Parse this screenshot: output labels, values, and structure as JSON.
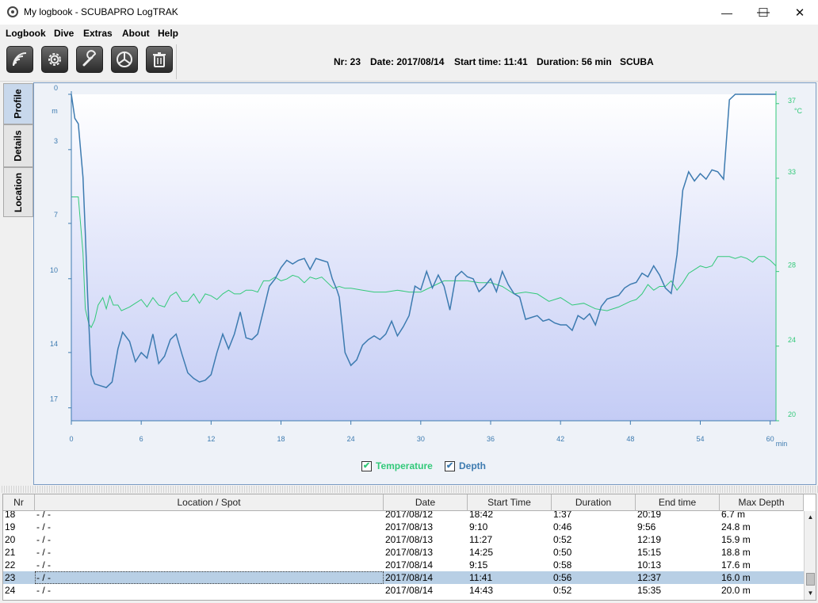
{
  "window": {
    "title": "My logbook - SCUBAPRO LogTRAK",
    "minimize_label": "—",
    "maximize_label": "☐",
    "close_label": "✕"
  },
  "menu": [
    "Logbook",
    "Dive",
    "Extras",
    "About",
    "Help"
  ],
  "toolbar": {
    "buttons": [
      "download-icon",
      "settings-gear-icon",
      "wrench-icon",
      "pie-chart-icon",
      "trash-icon"
    ],
    "dive_info": {
      "nr": "Nr: 23",
      "date": "Date: 2017/08/14",
      "start_time": "Start time: 11:41",
      "duration": "Duration: 56 min",
      "type": "SCUBA"
    }
  },
  "side_tabs": [
    {
      "label": "Profile",
      "active": true
    },
    {
      "label": "Details",
      "active": false
    },
    {
      "label": "Location",
      "active": false
    }
  ],
  "chart_data": {
    "type": "line",
    "x_unit": "min",
    "x_ticks": [
      0,
      6,
      12,
      18,
      24,
      30,
      36,
      42,
      48,
      54,
      60
    ],
    "xlim": [
      0,
      60.5
    ],
    "left_axis": {
      "unit": "m",
      "ticks": [
        0,
        3,
        7,
        10,
        14,
        17
      ],
      "range": [
        0,
        17.7
      ],
      "inverted": true
    },
    "right_axis": {
      "unit": "°C",
      "ticks": [
        20,
        24,
        28,
        33,
        37
      ],
      "range": [
        20,
        37.5
      ]
    },
    "colors": {
      "depth": "#3d7bb0",
      "temperature": "#33c97a",
      "grad_top": "#ffffff",
      "grad_bottom": "#c4ccf5"
    },
    "series": [
      {
        "name": "Depth",
        "x": [
          0,
          0.3,
          0.6,
          1.0,
          1.2,
          1.4,
          1.7,
          2.0,
          2.5,
          3.0,
          3.5,
          4.0,
          4.4,
          5.0,
          5.5,
          6.0,
          6.5,
          7.0,
          7.5,
          8.0,
          8.5,
          9.0,
          9.5,
          10.0,
          10.5,
          11.0,
          11.5,
          12.0,
          12.5,
          13.0,
          13.5,
          14.0,
          14.5,
          15.0,
          15.5,
          16.0,
          16.5,
          17.0,
          17.5,
          18.0,
          18.5,
          19.0,
          19.5,
          20.0,
          20.5,
          21.0,
          21.5,
          22.0,
          22.4,
          22.8,
          23.0,
          23.5,
          24.0,
          24.5,
          25.0,
          25.5,
          26.0,
          26.5,
          27.0,
          27.5,
          28.0,
          28.5,
          29.0,
          29.5,
          30.0,
          30.5,
          31.0,
          31.5,
          32.0,
          32.5,
          33.0,
          33.5,
          34.0,
          34.5,
          35.0,
          35.5,
          36.0,
          36.5,
          37.0,
          37.5,
          38.0,
          38.5,
          39.0,
          39.5,
          40.0,
          40.5,
          41.0,
          41.5,
          42.0,
          42.5,
          43.0,
          43.5,
          44.0,
          44.5,
          45.0,
          45.5,
          46.0,
          46.5,
          47.0,
          47.5,
          48.0,
          48.5,
          49.0,
          49.5,
          50.0,
          50.5,
          51.0,
          51.5,
          52.0,
          52.5,
          53.0,
          53.5,
          54.0,
          54.5,
          55.0,
          55.5,
          56.0,
          56.5,
          57.0,
          57.5,
          58.0,
          58.5,
          59.0,
          59.5,
          60.0,
          60.5
        ],
        "y": [
          0.0,
          1.3,
          1.6,
          4.5,
          7.5,
          11.0,
          15.2,
          15.7,
          15.8,
          15.9,
          15.6,
          13.8,
          12.9,
          13.4,
          14.5,
          14.0,
          14.3,
          13.0,
          14.6,
          14.2,
          13.3,
          13.0,
          14.1,
          15.1,
          15.4,
          15.6,
          15.5,
          15.2,
          14.0,
          13.0,
          13.8,
          13.0,
          11.8,
          13.2,
          13.3,
          13.0,
          11.7,
          10.4,
          10.0,
          9.4,
          9.0,
          9.2,
          9.0,
          8.9,
          9.5,
          8.9,
          9.0,
          9.1,
          10.0,
          10.6,
          11.0,
          14.0,
          14.7,
          14.4,
          13.6,
          13.3,
          13.1,
          13.3,
          13.0,
          12.3,
          13.1,
          12.6,
          12.0,
          10.4,
          10.6,
          9.6,
          10.5,
          9.8,
          10.4,
          11.7,
          9.9,
          9.6,
          9.9,
          10.0,
          10.7,
          10.4,
          10.0,
          10.7,
          9.6,
          10.3,
          10.8,
          11.0,
          12.2,
          12.1,
          12.0,
          12.3,
          12.2,
          12.4,
          12.5,
          12.5,
          12.8,
          12.0,
          12.2,
          11.9,
          12.5,
          11.5,
          11.1,
          11.0,
          10.9,
          10.5,
          10.3,
          10.2,
          9.7,
          9.9,
          9.3,
          9.8,
          10.5,
          10.8,
          8.7,
          5.2,
          4.2,
          4.7,
          4.3,
          4.6,
          4.1,
          4.2,
          4.6,
          0.3,
          0.0,
          0.0,
          0.0,
          0.0,
          0.0,
          0.0,
          0.0,
          0.0
        ]
      },
      {
        "name": "Temperature",
        "x": [
          0,
          0.6,
          1.0,
          1.2,
          1.5,
          1.7,
          2.0,
          2.3,
          2.7,
          3.0,
          3.3,
          3.6,
          4.0,
          4.3,
          5.0,
          5.5,
          6.0,
          6.5,
          7.0,
          7.5,
          8.0,
          8.5,
          9.0,
          9.5,
          10.0,
          10.5,
          11.0,
          11.5,
          12.0,
          12.5,
          13.0,
          13.5,
          14.0,
          14.5,
          15.0,
          15.5,
          16.0,
          16.5,
          17.0,
          17.5,
          18.0,
          18.5,
          19.0,
          19.5,
          20.0,
          20.5,
          21.0,
          21.5,
          22.0,
          22.5,
          23.0,
          23.5,
          24.0,
          25.0,
          26.0,
          27.0,
          28.0,
          29.0,
          30.0,
          31.0,
          32.0,
          33.0,
          34.0,
          35.0,
          36.0,
          37.0,
          38.0,
          39.0,
          40.0,
          41.0,
          42.0,
          43.0,
          44.0,
          45.0,
          46.0,
          47.0,
          48.0,
          48.5,
          49.0,
          49.5,
          50.0,
          50.5,
          51.0,
          51.5,
          52.0,
          52.5,
          53.0,
          53.5,
          54.0,
          54.5,
          55.0,
          55.5,
          56.0,
          56.5,
          57.0,
          57.5,
          58.0,
          58.5,
          59.0,
          59.5,
          60.0,
          60.5
        ],
        "y": [
          32.0,
          32.0,
          29.0,
          26.0,
          25.2,
          25.0,
          25.4,
          26.2,
          26.6,
          26.0,
          26.7,
          26.2,
          26.2,
          25.9,
          26.1,
          26.3,
          26.5,
          26.1,
          26.6,
          26.2,
          26.1,
          26.7,
          26.9,
          26.4,
          26.4,
          26.8,
          26.3,
          26.8,
          26.7,
          26.5,
          26.8,
          27.0,
          26.8,
          26.8,
          27.0,
          27.0,
          26.9,
          27.5,
          27.5,
          27.7,
          27.5,
          27.6,
          27.8,
          27.7,
          27.4,
          27.7,
          27.6,
          27.7,
          27.4,
          27.1,
          27.2,
          27.1,
          27.1,
          27.0,
          26.9,
          26.9,
          27.0,
          26.9,
          26.9,
          27.2,
          27.5,
          27.5,
          27.5,
          27.4,
          27.4,
          27.2,
          26.8,
          26.9,
          26.8,
          26.4,
          26.6,
          26.2,
          26.3,
          26.0,
          25.9,
          26.1,
          26.4,
          26.5,
          26.8,
          27.3,
          27.0,
          27.2,
          27.2,
          27.5,
          27.0,
          27.4,
          27.9,
          28.1,
          28.3,
          28.2,
          28.3,
          28.8,
          28.8,
          28.8,
          28.7,
          28.8,
          28.7,
          28.5,
          28.8,
          28.8,
          28.6,
          28.3
        ]
      }
    ]
  },
  "legend": {
    "temperature_label": "Temperature",
    "depth_label": "Depth",
    "temperature_checked": true,
    "depth_checked": true,
    "check_mark": "✔"
  },
  "table": {
    "columns": [
      "Nr",
      "Location / Spot",
      "Date",
      "Start Time",
      "Duration",
      "End time",
      "Max Depth"
    ],
    "rows": [
      {
        "nr": "18",
        "location": "- / -",
        "date": "2017/08/12",
        "start": "18:42",
        "duration": "1:37",
        "end": "20:19",
        "max_depth": "6.7 m",
        "selected": false
      },
      {
        "nr": "19",
        "location": "- / -",
        "date": "2017/08/13",
        "start": "9:10",
        "duration": "0:46",
        "end": "9:56",
        "max_depth": "24.8 m",
        "selected": false
      },
      {
        "nr": "20",
        "location": "- / -",
        "date": "2017/08/13",
        "start": "11:27",
        "duration": "0:52",
        "end": "12:19",
        "max_depth": "15.9 m",
        "selected": false
      },
      {
        "nr": "21",
        "location": "- / -",
        "date": "2017/08/13",
        "start": "14:25",
        "duration": "0:50",
        "end": "15:15",
        "max_depth": "18.8 m",
        "selected": false
      },
      {
        "nr": "22",
        "location": "- / -",
        "date": "2017/08/14",
        "start": "9:15",
        "duration": "0:58",
        "end": "10:13",
        "max_depth": "17.6 m",
        "selected": false
      },
      {
        "nr": "23",
        "location": "- / -",
        "date": "2017/08/14",
        "start": "11:41",
        "duration": "0:56",
        "end": "12:37",
        "max_depth": "16.0 m",
        "selected": true
      },
      {
        "nr": "24",
        "location": "- / -",
        "date": "2017/08/14",
        "start": "14:43",
        "duration": "0:52",
        "end": "15:35",
        "max_depth": "20.0 m",
        "selected": false
      }
    ]
  },
  "scrollbar": {
    "up_arrow": "▲",
    "down_arrow": "▼",
    "thumb_grip": "≡"
  }
}
